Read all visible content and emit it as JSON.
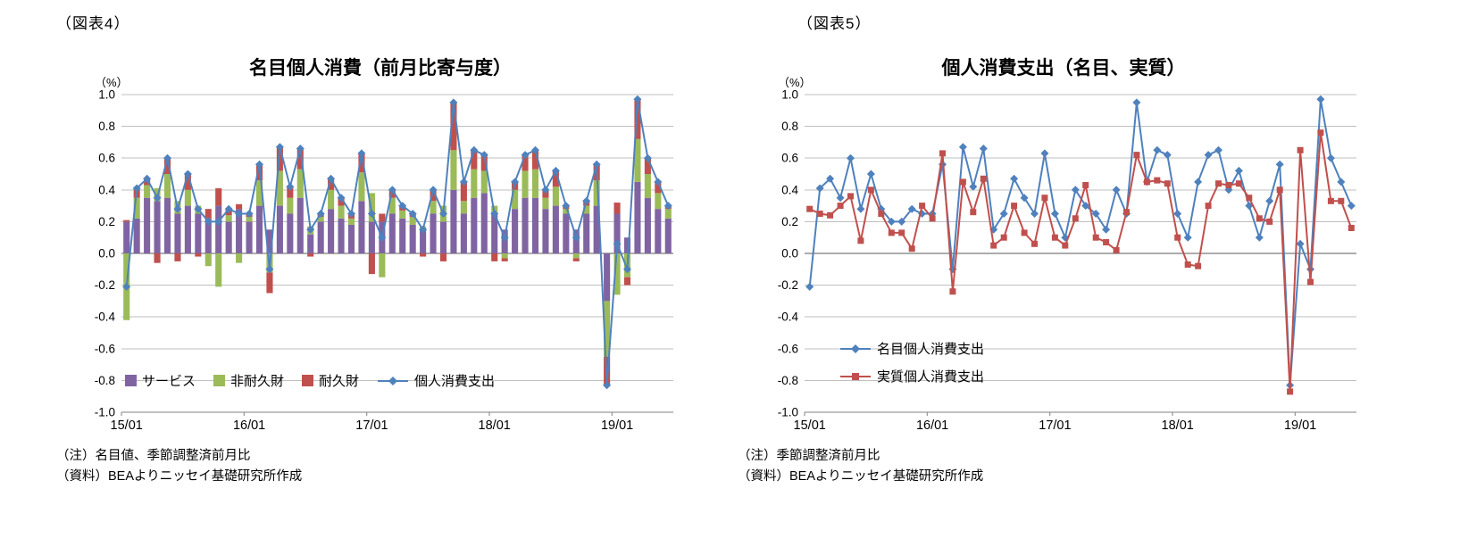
{
  "colors": {
    "services": "#8064A2",
    "nondurables": "#9BBB59",
    "durables": "#C0504D",
    "nominal_line": "#4F81BD",
    "real_line": "#C0504D",
    "grid": "#BFBFBF",
    "zero_axis": "#595959",
    "axis": "#808080",
    "text": "#000000"
  },
  "figures": [
    {
      "tag": "（図表4）",
      "unit": "（%）",
      "notes": [
        "（注）名目値、季節調整済前月比",
        "（資料）BEAよりニッセイ基礎研究所作成"
      ]
    },
    {
      "tag": "（図表5）",
      "unit": "（%）",
      "notes": [
        "（注）季節調整済前月比",
        "（資料）BEAよりニッセイ基礎研究所作成"
      ]
    }
  ],
  "chart_data": [
    {
      "type": "bar",
      "subtype": "stacked-bar-with-line",
      "title": "名目個人消費（前月比寄与度）",
      "ylabel": "（%）",
      "ylim": [
        -1.0,
        1.0
      ],
      "ytick_step": 0.2,
      "grid": true,
      "legend_position": "inside-bottom",
      "x_tick_every": 12,
      "x_tick_labels": [
        "15/01",
        "16/01",
        "17/01",
        "18/01",
        "19/01"
      ],
      "categories": [
        "15/01",
        "15/02",
        "15/03",
        "15/04",
        "15/05",
        "15/06",
        "15/07",
        "15/08",
        "15/09",
        "15/10",
        "15/11",
        "15/12",
        "16/01",
        "16/02",
        "16/03",
        "16/04",
        "16/05",
        "16/06",
        "16/07",
        "16/08",
        "16/09",
        "16/10",
        "16/11",
        "16/12",
        "17/01",
        "17/02",
        "17/03",
        "17/04",
        "17/05",
        "17/06",
        "17/07",
        "17/08",
        "17/09",
        "17/10",
        "17/11",
        "17/12",
        "18/01",
        "18/02",
        "18/03",
        "18/04",
        "18/05",
        "18/06",
        "18/07",
        "18/08",
        "18/09",
        "18/10",
        "18/11",
        "18/12",
        "19/01",
        "19/02",
        "19/03",
        "19/04",
        "19/05",
        "19/06"
      ],
      "bar_series": [
        {
          "name": "サービス",
          "color": "services",
          "values": [
            0.2,
            0.22,
            0.35,
            0.33,
            0.35,
            0.25,
            0.3,
            0.25,
            0.22,
            0.3,
            0.2,
            0.28,
            0.2,
            0.3,
            0.15,
            0.3,
            0.25,
            0.35,
            0.12,
            0.2,
            0.28,
            0.22,
            0.18,
            0.33,
            0.2,
            0.2,
            0.25,
            0.22,
            0.18,
            0.15,
            0.25,
            0.2,
            0.4,
            0.25,
            0.35,
            0.38,
            0.25,
            0.15,
            0.28,
            0.35,
            0.35,
            0.28,
            0.3,
            0.25,
            0.15,
            0.25,
            0.3,
            -0.3,
            0.25,
            0.1,
            0.45,
            0.35,
            0.28,
            0.22
          ]
        },
        {
          "name": "非耐久財",
          "color": "nondurables",
          "values": [
            -0.42,
            0.13,
            0.08,
            0.08,
            0.15,
            0.08,
            0.1,
            0.05,
            -0.08,
            -0.21,
            0.04,
            -0.06,
            0.03,
            0.16,
            -0.12,
            0.22,
            0.1,
            0.18,
            0.05,
            0.03,
            0.12,
            0.08,
            0.04,
            0.18,
            0.18,
            -0.15,
            0.1,
            0.05,
            0.05,
            0.02,
            0.08,
            0.1,
            0.25,
            0.08,
            0.18,
            0.14,
            0.05,
            -0.03,
            0.12,
            0.17,
            0.18,
            0.07,
            0.12,
            0.03,
            -0.03,
            0.05,
            0.16,
            -0.35,
            -0.26,
            -0.15,
            0.27,
            0.15,
            0.1,
            0.06
          ]
        },
        {
          "name": "耐久財",
          "color": "durables",
          "values": [
            0.01,
            0.06,
            0.04,
            -0.06,
            0.1,
            -0.05,
            0.1,
            -0.02,
            0.06,
            0.11,
            0.04,
            0.03,
            0.02,
            0.1,
            -0.13,
            0.15,
            0.07,
            0.13,
            -0.02,
            0.02,
            0.07,
            0.05,
            0.03,
            0.12,
            -0.13,
            0.05,
            0.05,
            0.03,
            0.02,
            -0.02,
            0.07,
            -0.05,
            0.3,
            0.12,
            0.12,
            0.1,
            -0.05,
            -0.02,
            0.05,
            0.1,
            0.12,
            0.05,
            0.1,
            0.02,
            -0.02,
            0.03,
            0.1,
            -0.18,
            0.07,
            -0.05,
            0.25,
            0.1,
            0.07,
            0.02
          ]
        }
      ],
      "line_series": [
        {
          "name": "個人消費支出",
          "color": "nominal_line",
          "marker": "diamond",
          "values": [
            -0.21,
            0.41,
            0.47,
            0.35,
            0.6,
            0.28,
            0.5,
            0.28,
            0.2,
            0.2,
            0.28,
            0.25,
            0.25,
            0.56,
            -0.1,
            0.67,
            0.42,
            0.66,
            0.15,
            0.25,
            0.47,
            0.35,
            0.25,
            0.63,
            0.25,
            0.1,
            0.4,
            0.3,
            0.25,
            0.15,
            0.4,
            0.25,
            0.95,
            0.45,
            0.65,
            0.62,
            0.25,
            0.1,
            0.45,
            0.62,
            0.65,
            0.4,
            0.52,
            0.3,
            0.1,
            0.33,
            0.56,
            -0.83,
            0.06,
            -0.1,
            0.97,
            0.6,
            0.45,
            0.3
          ]
        }
      ]
    },
    {
      "type": "line",
      "title": "個人消費支出（名目、実質）",
      "ylabel": "（%）",
      "ylim": [
        -1.0,
        1.0
      ],
      "ytick_step": 0.2,
      "grid": true,
      "legend_position": "inside-left-lower",
      "x_tick_every": 12,
      "x_tick_labels": [
        "15/01",
        "16/01",
        "17/01",
        "18/01",
        "19/01"
      ],
      "categories": [
        "15/01",
        "15/02",
        "15/03",
        "15/04",
        "15/05",
        "15/06",
        "15/07",
        "15/08",
        "15/09",
        "15/10",
        "15/11",
        "15/12",
        "16/01",
        "16/02",
        "16/03",
        "16/04",
        "16/05",
        "16/06",
        "16/07",
        "16/08",
        "16/09",
        "16/10",
        "16/11",
        "16/12",
        "17/01",
        "17/02",
        "17/03",
        "17/04",
        "17/05",
        "17/06",
        "17/07",
        "17/08",
        "17/09",
        "17/10",
        "17/11",
        "17/12",
        "18/01",
        "18/02",
        "18/03",
        "18/04",
        "18/05",
        "18/06",
        "18/07",
        "18/08",
        "18/09",
        "18/10",
        "18/11",
        "18/12",
        "19/01",
        "19/02",
        "19/03",
        "19/04",
        "19/05",
        "19/06"
      ],
      "series": [
        {
          "name": "名目個人消費支出",
          "color": "nominal_line",
          "marker": "diamond",
          "values": [
            -0.21,
            0.41,
            0.47,
            0.35,
            0.6,
            0.28,
            0.5,
            0.28,
            0.2,
            0.2,
            0.28,
            0.25,
            0.25,
            0.56,
            -0.1,
            0.67,
            0.42,
            0.66,
            0.15,
            0.25,
            0.47,
            0.35,
            0.25,
            0.63,
            0.25,
            0.1,
            0.4,
            0.3,
            0.25,
            0.15,
            0.4,
            0.25,
            0.95,
            0.45,
            0.65,
            0.62,
            0.25,
            0.1,
            0.45,
            0.62,
            0.65,
            0.4,
            0.52,
            0.3,
            0.1,
            0.33,
            0.56,
            -0.83,
            0.06,
            -0.1,
            0.97,
            0.6,
            0.45,
            0.3
          ]
        },
        {
          "name": "実質個人消費支出",
          "color": "real_line",
          "marker": "square",
          "values": [
            0.28,
            0.25,
            0.24,
            0.3,
            0.36,
            0.08,
            0.4,
            0.25,
            0.13,
            0.13,
            0.03,
            0.3,
            0.22,
            0.63,
            -0.24,
            0.45,
            0.26,
            0.47,
            0.05,
            0.1,
            0.3,
            0.13,
            0.06,
            0.35,
            0.1,
            0.05,
            0.22,
            0.43,
            0.1,
            0.07,
            0.02,
            0.26,
            0.62,
            0.45,
            0.46,
            0.44,
            0.1,
            -0.07,
            -0.08,
            0.3,
            0.44,
            0.43,
            0.44,
            0.35,
            0.22,
            0.2,
            0.4,
            -0.87,
            0.65,
            -0.18,
            0.76,
            0.33,
            0.33,
            0.16
          ]
        }
      ]
    }
  ]
}
